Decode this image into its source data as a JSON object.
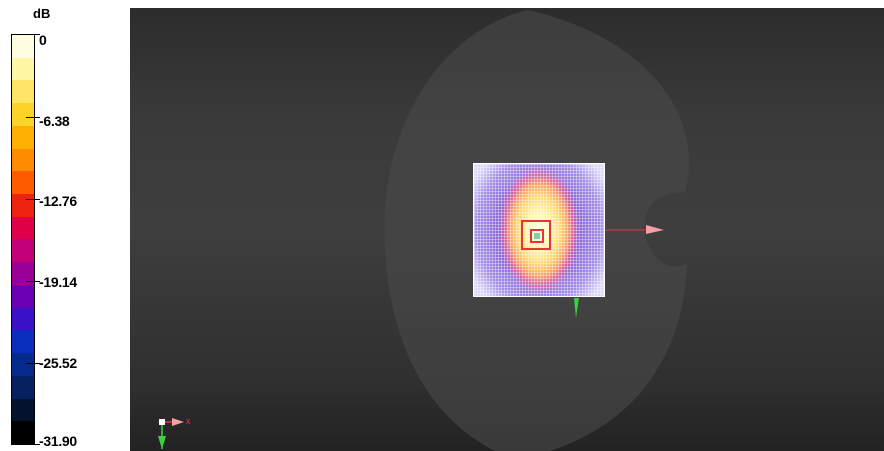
{
  "legend": {
    "unit": "dB",
    "ticks": [
      {
        "label": "0"
      },
      {
        "label": "-6.38"
      },
      {
        "label": "-12.76"
      },
      {
        "label": "-19.14"
      },
      {
        "label": "-25.52"
      },
      {
        "label": "-31.90"
      }
    ],
    "colors": [
      "#fffde0",
      "#fff6a6",
      "#ffe566",
      "#ffd22a",
      "#ffb000",
      "#ff8c00",
      "#ff5a00",
      "#ee2211",
      "#e0004a",
      "#c40078",
      "#9a0095",
      "#6a00b2",
      "#3a10c8",
      "#0a2ec0",
      "#062a8c",
      "#062060",
      "#04122e",
      "#000000"
    ]
  },
  "scene": {
    "colors": {
      "phantom": "#4a4a4a",
      "x_axis": "#e8323e",
      "y_axis": "#3ed03e",
      "grid": "#ffffff",
      "cube": "#e8323e"
    },
    "icons": [
      "x-axis-arrow-icon",
      "y-axis-arrow-icon",
      "axis-triad-icon"
    ],
    "triad_label": "x"
  }
}
